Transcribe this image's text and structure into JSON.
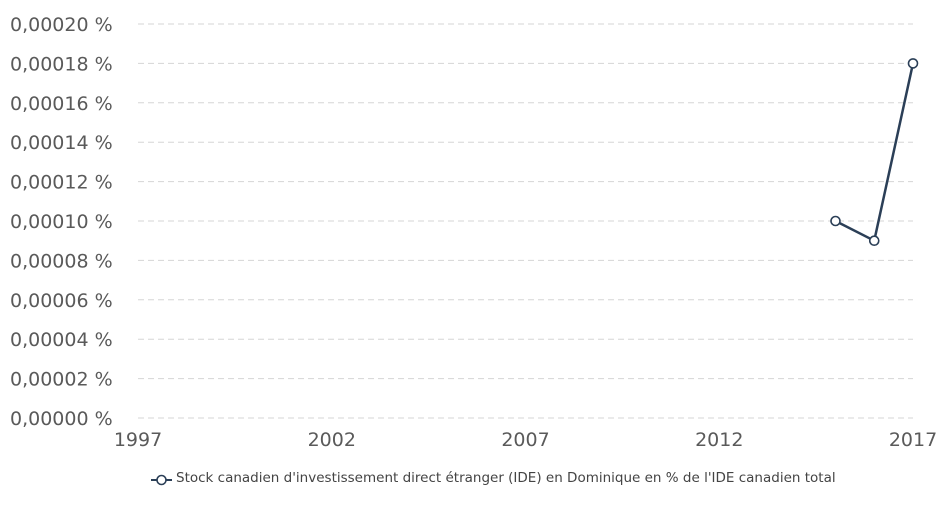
{
  "chart_data": {
    "type": "line",
    "title": "",
    "xlabel": "",
    "ylabel": "",
    "xlim": [
      1997,
      2017
    ],
    "ylim": [
      0,
      0.0002
    ],
    "x_ticks": [
      1997,
      2002,
      2007,
      2012,
      2017
    ],
    "x_tick_labels": [
      "1997",
      "2002",
      "2007",
      "2012",
      "2017"
    ],
    "y_ticks": [
      0,
      2e-05,
      4e-05,
      6e-05,
      8e-05,
      0.0001,
      0.00012,
      0.00014,
      0.00016,
      0.00018,
      0.0002
    ],
    "y_tick_labels": [
      "0,00000 %",
      "0,00002 %",
      "0,00004 %",
      "0,00006 %",
      "0,00008 %",
      "0,00010 %",
      "0,00012 %",
      "0,00014 %",
      "0,00016 %",
      "0,00018 %",
      "0,00020 %"
    ],
    "grid": true,
    "legend_position": "bottom",
    "series": [
      {
        "name": "Stock canadien d'investissement direct étranger (IDE) en Dominique en % de l'IDE canadien total",
        "color": "#2b3f57",
        "marker": "open-circle",
        "x": [
          2015,
          2016,
          2017
        ],
        "y": [
          0.0001,
          9e-05,
          0.00018
        ]
      }
    ]
  }
}
